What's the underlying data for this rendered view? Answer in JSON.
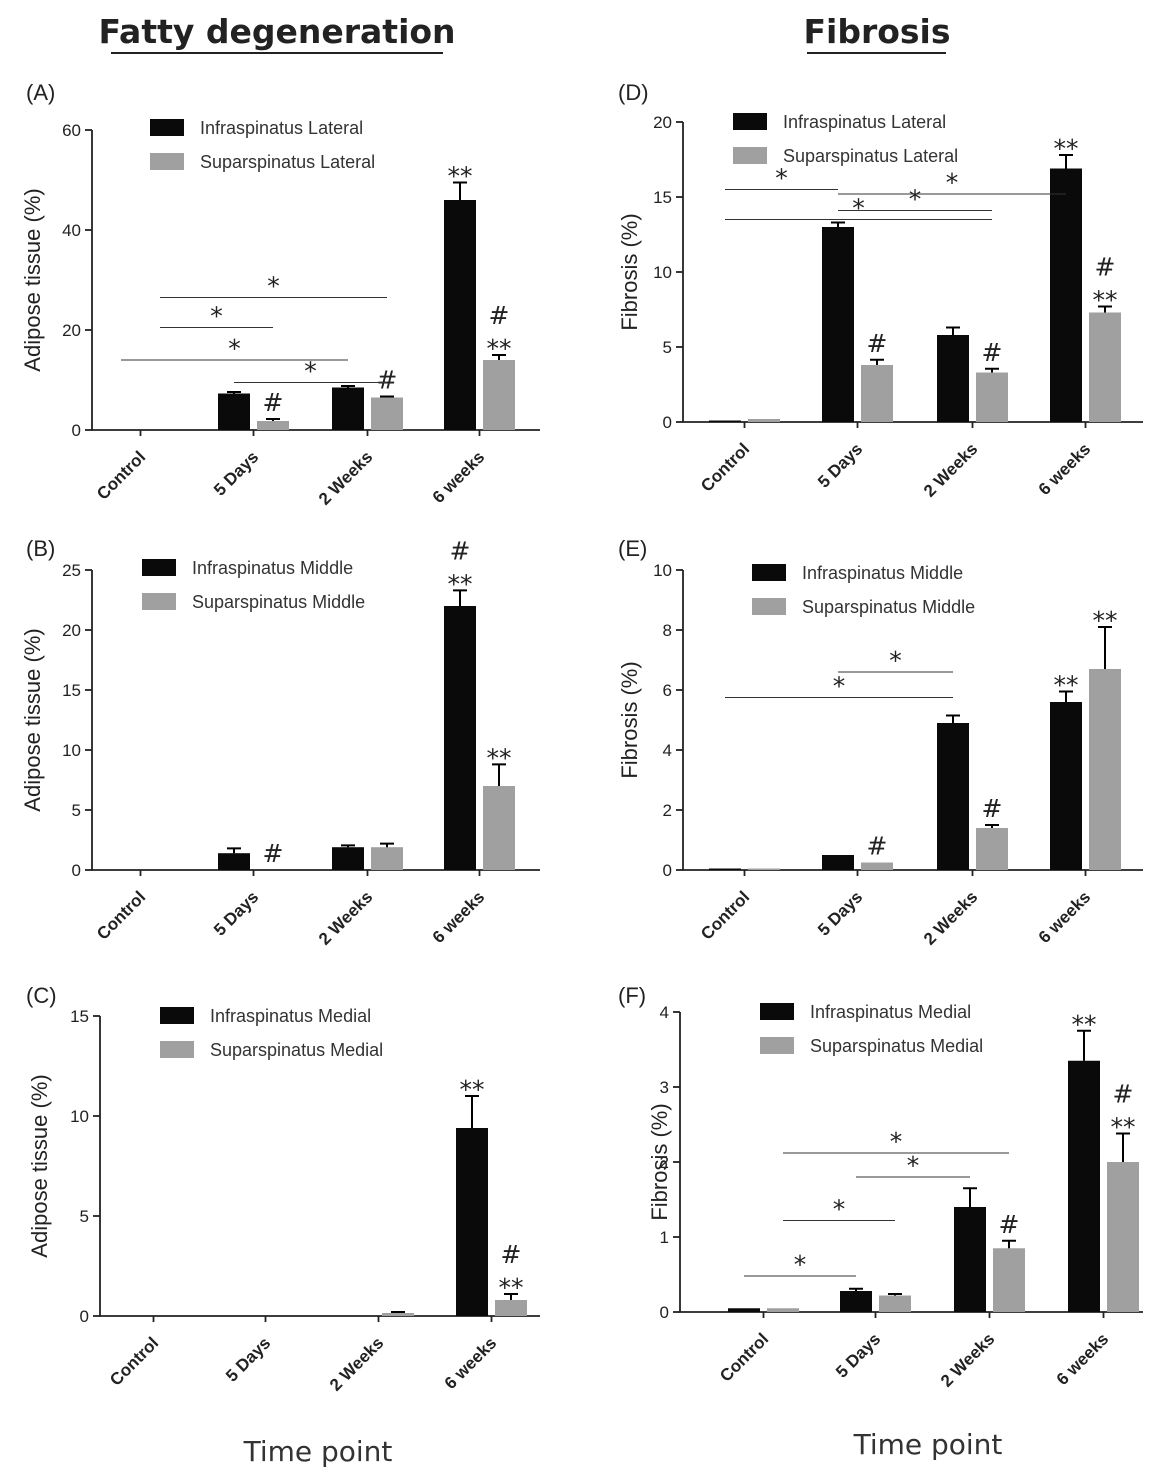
{
  "headers": {
    "left": "Fatty degeneration",
    "right": "Fibrosis"
  },
  "x_axis_title": "Time point",
  "colors": {
    "series_1": "#0a0a0a",
    "series_2": "#a0a0a0"
  },
  "chart_data": [
    {
      "id": "A",
      "label": "(A)",
      "type": "bar",
      "ylabel": "Adipose tissue (%)",
      "ylim": [
        0,
        60
      ],
      "yticks": [
        0,
        20,
        40,
        60
      ],
      "categories": [
        "Control",
        "5 Days",
        "2 Weeks",
        "6 weeks"
      ],
      "series": [
        {
          "name": "Infraspinatus Lateral",
          "values": [
            0,
            7.3,
            8.5,
            46
          ],
          "errors": [
            0,
            0.3,
            0.3,
            3.5
          ]
        },
        {
          "name": "Suparspinatus Lateral",
          "values": [
            0,
            1.8,
            6.5,
            14
          ],
          "errors": [
            0,
            0.4,
            0.2,
            1.0
          ]
        }
      ],
      "markers": [
        {
          "category": 1,
          "series": 1,
          "text": "#"
        },
        {
          "category": 2,
          "series": 1,
          "text": "#"
        },
        {
          "category": 3,
          "series": 0,
          "text": "**"
        },
        {
          "category": 3,
          "series": 1,
          "text": "**"
        },
        {
          "category": 3,
          "series": 1,
          "text": "#"
        }
      ],
      "comparisons": [
        {
          "y": 26.5,
          "from": [
            0,
            1
          ],
          "to": [
            2,
            1
          ],
          "text": "*"
        },
        {
          "y": 20.5,
          "from": [
            0,
            1
          ],
          "to": [
            1,
            1
          ],
          "text": "*"
        },
        {
          "y": 14,
          "from": [
            0,
            0
          ],
          "to": [
            2,
            0
          ],
          "text": "*"
        },
        {
          "y": 9.5,
          "from": [
            1,
            0
          ],
          "to": [
            2,
            1
          ],
          "text": "*"
        }
      ]
    },
    {
      "id": "D",
      "label": "(D)",
      "type": "bar",
      "ylabel": "Fibrosis (%)",
      "ylim": [
        0,
        20
      ],
      "yticks": [
        0,
        5,
        10,
        15,
        20
      ],
      "categories": [
        "Control",
        "5 Days",
        "2 Weeks",
        "6 weeks"
      ],
      "series": [
        {
          "name": "Infraspinatus Lateral",
          "values": [
            0.1,
            13,
            5.8,
            16.9
          ],
          "errors": [
            0,
            0.3,
            0.5,
            0.9
          ]
        },
        {
          "name": "Suparspinatus Lateral",
          "values": [
            0.2,
            3.8,
            3.3,
            7.3
          ],
          "errors": [
            0,
            0.35,
            0.25,
            0.4
          ]
        }
      ],
      "markers": [
        {
          "category": 1,
          "series": 1,
          "text": "#"
        },
        {
          "category": 2,
          "series": 1,
          "text": "#"
        },
        {
          "category": 3,
          "series": 0,
          "text": "**"
        },
        {
          "category": 3,
          "series": 1,
          "text": "**"
        },
        {
          "category": 3,
          "series": 1,
          "text": "#"
        }
      ],
      "comparisons": [
        {
          "y": 15.5,
          "from": [
            0,
            0
          ],
          "to": [
            1,
            0
          ],
          "text": "*"
        },
        {
          "y": 15.2,
          "from": [
            1,
            0
          ],
          "to": [
            3,
            0
          ],
          "text": "*"
        },
        {
          "y": 14.1,
          "from": [
            1,
            0
          ],
          "to": [
            2,
            1
          ],
          "text": "*"
        },
        {
          "y": 13.5,
          "from": [
            0,
            0
          ],
          "to": [
            2,
            1
          ],
          "text": "*"
        }
      ]
    },
    {
      "id": "B",
      "label": "(B)",
      "type": "bar",
      "ylabel": "Adipose tissue (%)",
      "ylim": [
        0,
        25
      ],
      "yticks": [
        0,
        5,
        10,
        15,
        20,
        25
      ],
      "categories": [
        "Control",
        "5 Days",
        "2 Weeks",
        "6 weeks"
      ],
      "series": [
        {
          "name": "Infraspinatus Middle",
          "values": [
            0,
            1.4,
            1.9,
            22
          ],
          "errors": [
            0,
            0.4,
            0.15,
            1.3
          ]
        },
        {
          "name": "Suparspinatus Middle",
          "values": [
            0,
            0,
            1.9,
            7
          ],
          "errors": [
            0,
            0,
            0.3,
            1.8
          ]
        }
      ],
      "markers": [
        {
          "category": 1,
          "series": 1,
          "text": "#"
        },
        {
          "category": 3,
          "series": 0,
          "text": "**"
        },
        {
          "category": 3,
          "series": 0,
          "text": "#"
        },
        {
          "category": 3,
          "series": 1,
          "text": "**"
        }
      ],
      "comparisons": []
    },
    {
      "id": "E",
      "label": "(E)",
      "type": "bar",
      "ylabel": "Fibrosis (%)",
      "ylim": [
        0,
        10
      ],
      "yticks": [
        0,
        2,
        4,
        6,
        8,
        10
      ],
      "categories": [
        "Control",
        "5 Days",
        "2 Weeks",
        "6 weeks"
      ],
      "series": [
        {
          "name": "Infraspinatus Middle",
          "values": [
            0.05,
            0.5,
            4.9,
            5.6
          ],
          "errors": [
            0,
            0,
            0.25,
            0.35
          ]
        },
        {
          "name": "Suparspinatus Middle",
          "values": [
            0.05,
            0.25,
            1.4,
            6.7
          ],
          "errors": [
            0,
            0,
            0.1,
            1.4
          ]
        }
      ],
      "markers": [
        {
          "category": 1,
          "series": 1,
          "text": "#"
        },
        {
          "category": 2,
          "series": 1,
          "text": "#"
        },
        {
          "category": 3,
          "series": 0,
          "text": "**"
        },
        {
          "category": 3,
          "series": 1,
          "text": "**"
        }
      ],
      "comparisons": [
        {
          "y": 6.6,
          "from": [
            1,
            0
          ],
          "to": [
            2,
            0
          ],
          "text": "*"
        },
        {
          "y": 5.75,
          "from": [
            0,
            0
          ],
          "to": [
            2,
            0
          ],
          "text": "*"
        }
      ]
    },
    {
      "id": "C",
      "label": "(C)",
      "type": "bar",
      "ylabel": "Adipose tissue (%)",
      "ylim": [
        0,
        15
      ],
      "yticks": [
        0,
        5,
        10,
        15
      ],
      "categories": [
        "Control",
        "5 Days",
        "2 Weeks",
        "6 weeks"
      ],
      "series": [
        {
          "name": "Infraspinatus Medial",
          "values": [
            0,
            0,
            0,
            9.4
          ],
          "errors": [
            0,
            0,
            0,
            1.6
          ]
        },
        {
          "name": "Suparspinatus Medial",
          "values": [
            0,
            0,
            0.15,
            0.8
          ],
          "errors": [
            0,
            0,
            0.05,
            0.3
          ]
        }
      ],
      "markers": [
        {
          "category": 3,
          "series": 0,
          "text": "**"
        },
        {
          "category": 3,
          "series": 1,
          "text": "**"
        },
        {
          "category": 3,
          "series": 1,
          "text": "#"
        }
      ],
      "comparisons": []
    },
    {
      "id": "F",
      "label": "(F)",
      "type": "bar",
      "ylabel": "Fibrosis (%)",
      "ylim": [
        0,
        4
      ],
      "yticks": [
        0,
        1,
        2,
        3,
        4
      ],
      "categories": [
        "Control",
        "5 Days",
        "2 Weeks",
        "6 weeks"
      ],
      "series": [
        {
          "name": "Infraspinatus Medial",
          "values": [
            0.05,
            0.28,
            1.4,
            3.35
          ],
          "errors": [
            0,
            0.03,
            0.25,
            0.4
          ]
        },
        {
          "name": "Suparspinatus Medial",
          "values": [
            0.05,
            0.22,
            0.85,
            2.0
          ],
          "errors": [
            0,
            0.02,
            0.1,
            0.38
          ]
        }
      ],
      "markers": [
        {
          "category": 2,
          "series": 1,
          "text": "#"
        },
        {
          "category": 3,
          "series": 0,
          "text": "**"
        },
        {
          "category": 3,
          "series": 1,
          "text": "**"
        },
        {
          "category": 3,
          "series": 1,
          "text": "#"
        }
      ],
      "comparisons": [
        {
          "y": 2.12,
          "from": [
            0,
            1
          ],
          "to": [
            2,
            1
          ],
          "text": "*"
        },
        {
          "y": 1.8,
          "from": [
            1,
            0
          ],
          "to": [
            2,
            0
          ],
          "text": "*"
        },
        {
          "y": 1.22,
          "from": [
            0,
            1
          ],
          "to": [
            1,
            1
          ],
          "text": "*"
        },
        {
          "y": 0.48,
          "from": [
            0,
            0
          ],
          "to": [
            1,
            0
          ],
          "text": "*"
        }
      ]
    }
  ]
}
